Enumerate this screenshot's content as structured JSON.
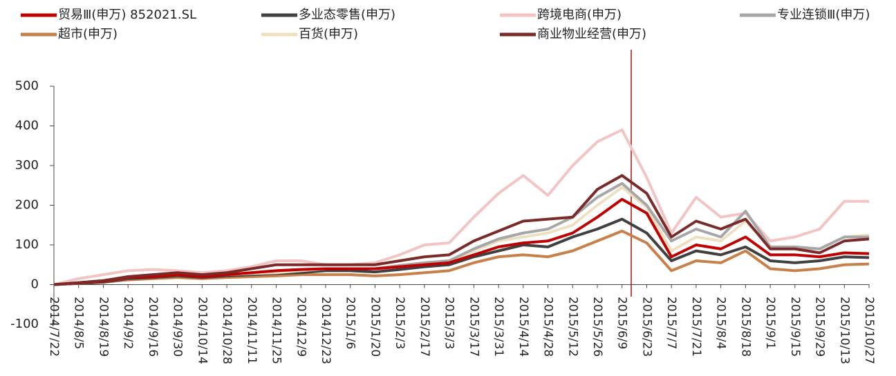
{
  "chart_data": {
    "type": "line",
    "categories": [
      "2014/7/22",
      "2014/8/5",
      "2014/8/19",
      "2014/9/2",
      "2014/9/16",
      "2014/9/30",
      "2014/10/14",
      "2014/10/28",
      "2014/11/11",
      "2014/11/25",
      "2014/12/9",
      "2014/12/23",
      "2015/1/6",
      "2015/1/20",
      "2015/2/3",
      "2015/2/17",
      "2015/3/3",
      "2015/3/17",
      "2015/3/31",
      "2015/4/14",
      "2015/4/28",
      "2015/5/12",
      "2015/5/26",
      "2015/6/9",
      "2015/6/23",
      "2015/7/7",
      "2015/7/21",
      "2015/8/4",
      "2015/8/18",
      "2015/9/1",
      "2015/9/15",
      "2015/9/29",
      "2015/10/13",
      "2015/10/27"
    ],
    "series": [
      {
        "name": "贸易Ⅲ(申万) 852021.SL",
        "color": "#c00000",
        "values": [
          0,
          4,
          8,
          18,
          20,
          25,
          20,
          25,
          30,
          35,
          38,
          40,
          40,
          40,
          45,
          50,
          55,
          75,
          95,
          105,
          110,
          130,
          170,
          215,
          180,
          70,
          100,
          90,
          120,
          75,
          75,
          70,
          80,
          78
        ]
      },
      {
        "name": "多业态零售(申万)",
        "color": "#404040",
        "values": [
          0,
          3,
          6,
          15,
          18,
          22,
          18,
          22,
          25,
          28,
          30,
          35,
          35,
          32,
          38,
          45,
          50,
          70,
          85,
          100,
          95,
          120,
          140,
          165,
          130,
          60,
          85,
          75,
          95,
          60,
          55,
          60,
          70,
          68
        ]
      },
      {
        "name": "跨境电商(申万)",
        "color": "#f2c4c4",
        "values": [
          0,
          15,
          25,
          35,
          38,
          35,
          30,
          35,
          45,
          60,
          60,
          50,
          50,
          55,
          75,
          100,
          105,
          170,
          230,
          275,
          225,
          300,
          360,
          390,
          270,
          130,
          220,
          170,
          180,
          110,
          120,
          140,
          210,
          210
        ]
      },
      {
        "name": "专业连锁Ⅲ(申万)",
        "color": "#a6a6a6",
        "values": [
          0,
          4,
          8,
          18,
          22,
          25,
          22,
          25,
          30,
          35,
          38,
          40,
          40,
          40,
          48,
          55,
          60,
          90,
          115,
          130,
          140,
          170,
          220,
          255,
          200,
          110,
          140,
          120,
          185,
          95,
          95,
          90,
          120,
          120
        ]
      },
      {
        "name": "超市(申万)",
        "color": "#c8804a",
        "values": [
          0,
          3,
          6,
          12,
          15,
          18,
          15,
          18,
          20,
          22,
          25,
          25,
          25,
          22,
          25,
          30,
          35,
          55,
          70,
          75,
          70,
          85,
          110,
          135,
          105,
          35,
          60,
          55,
          85,
          40,
          35,
          40,
          50,
          52
        ]
      },
      {
        "name": "百货(申万)",
        "color": "#eedfc0",
        "values": [
          0,
          4,
          8,
          18,
          22,
          25,
          22,
          25,
          28,
          30,
          35,
          40,
          40,
          40,
          48,
          55,
          60,
          85,
          110,
          120,
          130,
          150,
          200,
          245,
          195,
          85,
          120,
          110,
          160,
          95,
          90,
          90,
          120,
          125
        ]
      },
      {
        "name": "商业物业经营(申万)",
        "color": "#7b2a2a",
        "values": [
          0,
          5,
          10,
          20,
          25,
          30,
          25,
          30,
          40,
          50,
          50,
          50,
          50,
          50,
          60,
          70,
          75,
          110,
          135,
          160,
          165,
          170,
          240,
          275,
          230,
          120,
          160,
          140,
          165,
          90,
          90,
          80,
          110,
          115
        ]
      }
    ],
    "ylim": [
      -100,
      500
    ],
    "yticks": [
      -100,
      0,
      100,
      200,
      300,
      400,
      500
    ]
  }
}
